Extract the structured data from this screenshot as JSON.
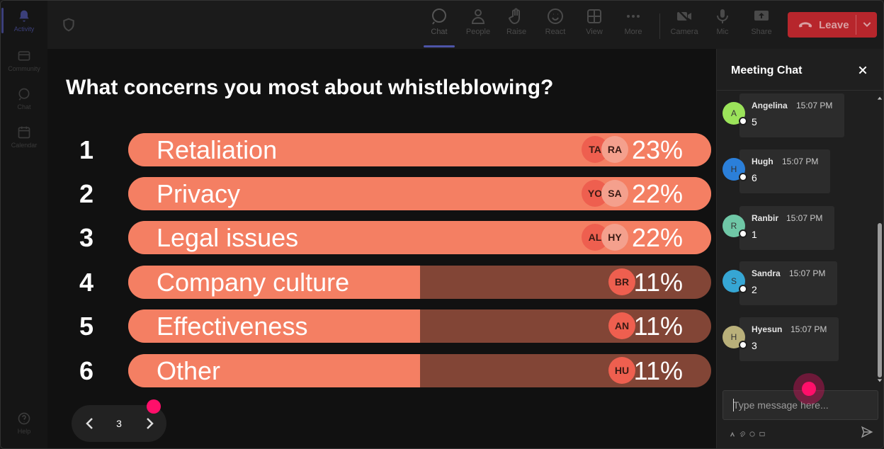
{
  "rail": {
    "items": [
      {
        "label": "Activity",
        "icon": "bell-icon"
      },
      {
        "label": "Community",
        "icon": "community-icon"
      },
      {
        "label": "Chat",
        "icon": "chat-icon"
      },
      {
        "label": "Calendar",
        "icon": "calendar-icon"
      },
      {
        "label": "Help",
        "icon": "help-icon"
      }
    ]
  },
  "toolbar": {
    "chat": "Chat",
    "people": "People",
    "raise": "Raise",
    "react": "React",
    "view": "View",
    "more": "More",
    "camera": "Camera",
    "mic": "Mic",
    "share": "Share",
    "leave": "Leave"
  },
  "poll": {
    "question": "What concerns you most about whistleblowing?",
    "options": [
      {
        "num": "1",
        "label": "Retaliation",
        "pct": "23%",
        "fill": 1.0,
        "avatars": [
          "TA",
          "RA"
        ]
      },
      {
        "num": "2",
        "label": "Privacy",
        "pct": "22%",
        "fill": 1.0,
        "avatars": [
          "YO",
          "SA"
        ]
      },
      {
        "num": "3",
        "label": "Legal issues",
        "pct": "22%",
        "fill": 1.0,
        "avatars": [
          "AL",
          "HY"
        ]
      },
      {
        "num": "4",
        "label": "Company culture",
        "pct": "11%",
        "fill": 0.5,
        "avatars": [
          "BR"
        ]
      },
      {
        "num": "5",
        "label": "Effectiveness",
        "pct": "11%",
        "fill": 0.5,
        "avatars": [
          "AN"
        ]
      },
      {
        "num": "6",
        "label": "Other",
        "pct": "11%",
        "fill": 0.5,
        "avatars": [
          "HU"
        ]
      }
    ],
    "page": "3"
  },
  "chat": {
    "title": "Meeting Chat",
    "messages": [
      {
        "initial": "A",
        "name": "Angelina",
        "time": "15:07 PM",
        "text": "5",
        "color": "#9be35a"
      },
      {
        "initial": "H",
        "name": "Hugh",
        "time": "15:07 PM",
        "text": "6",
        "color": "#2b7fd9"
      },
      {
        "initial": "R",
        "name": "Ranbir",
        "time": "15:07 PM",
        "text": "1",
        "color": "#6fc7a6"
      },
      {
        "initial": "S",
        "name": "Sandra",
        "time": "15:07 PM",
        "text": "2",
        "color": "#36a6d4"
      },
      {
        "initial": "H",
        "name": "Hyesun",
        "time": "15:07 PM",
        "text": "3",
        "color": "#b9b07a"
      }
    ],
    "placeholder": "Type message here..."
  },
  "colors": {
    "bar_fill": "#f47f63",
    "bar_track": "#824536",
    "leave": "#b7262c",
    "indicator": "#ff0f6a"
  }
}
